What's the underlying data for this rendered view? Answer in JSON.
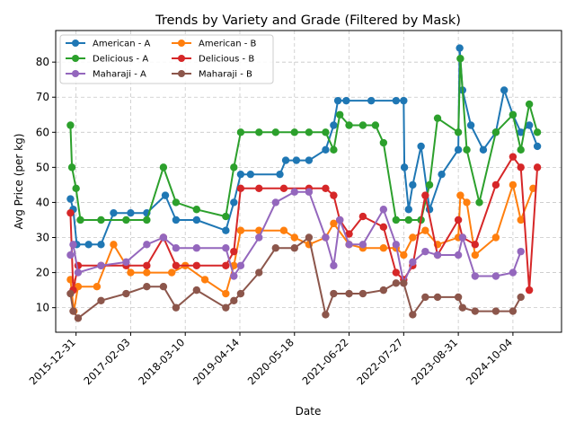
{
  "chart_data": {
    "type": "line",
    "title": "Trends by Variety and Grade (Filtered by Mask)",
    "xlabel": "Date",
    "ylabel": "Avg Price (per kg)",
    "xlim": [
      "2015-08-04",
      "2025-09-25"
    ],
    "ylim": [
      3,
      89
    ],
    "xticks": [
      "2015-12-31",
      "2017-02-03",
      "2018-03-10",
      "2019-04-14",
      "2020-05-18",
      "2021-06-22",
      "2022-07-27",
      "2023-08-31",
      "2024-10-04"
    ],
    "yticks": [
      10,
      20,
      30,
      40,
      50,
      60,
      70,
      80
    ],
    "grid": true,
    "legend_position": "top-left",
    "series": [
      {
        "name": "American - A",
        "color": "#1f77b4",
        "points": [
          [
            "2015-11-20",
            41
          ],
          [
            "2015-12-10",
            38
          ],
          [
            "2016-01-05",
            28
          ],
          [
            "2016-04-01",
            28
          ],
          [
            "2016-07-01",
            28
          ],
          [
            "2016-10-01",
            37
          ],
          [
            "2017-02-03",
            37
          ],
          [
            "2017-06-01",
            37
          ],
          [
            "2017-10-15",
            42
          ],
          [
            "2018-01-01",
            35
          ],
          [
            "2018-06-01",
            35
          ],
          [
            "2019-01-01",
            32
          ],
          [
            "2019-03-01",
            40
          ],
          [
            "2019-04-20",
            48
          ],
          [
            "2019-07-01",
            48
          ],
          [
            "2020-02-01",
            48
          ],
          [
            "2020-03-15",
            52
          ],
          [
            "2020-06-01",
            52
          ],
          [
            "2020-09-01",
            52
          ],
          [
            "2021-01-01",
            55
          ],
          [
            "2021-03-01",
            62
          ],
          [
            "2021-04-01",
            69
          ],
          [
            "2021-06-01",
            69
          ],
          [
            "2021-12-01",
            69
          ],
          [
            "2022-06-01",
            69
          ],
          [
            "2022-07-27",
            69
          ],
          [
            "2022-08-01",
            50
          ],
          [
            "2022-09-01",
            38
          ],
          [
            "2022-10-01",
            45
          ],
          [
            "2022-12-01",
            56
          ],
          [
            "2023-02-01",
            38
          ],
          [
            "2023-05-01",
            48
          ],
          [
            "2023-08-31",
            55
          ],
          [
            "2023-09-10",
            84
          ],
          [
            "2023-10-01",
            72
          ],
          [
            "2023-12-01",
            62
          ],
          [
            "2024-03-01",
            55
          ],
          [
            "2024-06-01",
            60
          ],
          [
            "2024-08-01",
            72
          ],
          [
            "2024-10-04",
            65
          ],
          [
            "2024-12-01",
            60
          ],
          [
            "2025-02-01",
            62
          ],
          [
            "2025-04-01",
            56
          ]
        ]
      },
      {
        "name": "American - B",
        "color": "#ff7f0e",
        "points": [
          [
            "2015-11-20",
            18
          ],
          [
            "2015-12-15",
            9
          ],
          [
            "2016-01-15",
            16
          ],
          [
            "2016-06-01",
            16
          ],
          [
            "2016-10-01",
            28
          ],
          [
            "2017-02-03",
            20
          ],
          [
            "2017-06-01",
            20
          ],
          [
            "2017-12-01",
            20
          ],
          [
            "2018-03-10",
            22
          ],
          [
            "2018-08-01",
            18
          ],
          [
            "2019-01-01",
            14
          ],
          [
            "2019-03-01",
            22
          ],
          [
            "2019-04-20",
            32
          ],
          [
            "2019-09-01",
            32
          ],
          [
            "2020-03-01",
            32
          ],
          [
            "2020-05-18",
            30
          ],
          [
            "2020-09-01",
            28
          ],
          [
            "2021-01-01",
            30
          ],
          [
            "2021-03-01",
            34
          ],
          [
            "2021-06-22",
            28
          ],
          [
            "2021-10-01",
            27
          ],
          [
            "2022-03-01",
            27
          ],
          [
            "2022-06-01",
            27
          ],
          [
            "2022-07-27",
            25
          ],
          [
            "2022-10-01",
            30
          ],
          [
            "2023-01-01",
            32
          ],
          [
            "2023-04-01",
            28
          ],
          [
            "2023-08-31",
            30
          ],
          [
            "2023-09-15",
            42
          ],
          [
            "2023-11-01",
            40
          ],
          [
            "2024-01-01",
            25
          ],
          [
            "2024-06-01",
            30
          ],
          [
            "2024-10-04",
            45
          ],
          [
            "2024-12-01",
            35
          ],
          [
            "2025-03-01",
            44
          ]
        ]
      },
      {
        "name": "Delicious - A",
        "color": "#2ca02c",
        "points": [
          [
            "2015-11-20",
            62
          ],
          [
            "2015-12-01",
            50
          ],
          [
            "2015-12-31",
            44
          ],
          [
            "2016-02-01",
            35
          ],
          [
            "2016-07-01",
            35
          ],
          [
            "2017-01-01",
            35
          ],
          [
            "2017-06-01",
            35
          ],
          [
            "2017-10-01",
            50
          ],
          [
            "2018-01-01",
            40
          ],
          [
            "2018-06-01",
            38
          ],
          [
            "2019-01-01",
            36
          ],
          [
            "2019-03-01",
            50
          ],
          [
            "2019-04-20",
            60
          ],
          [
            "2019-09-01",
            60
          ],
          [
            "2020-01-01",
            60
          ],
          [
            "2020-05-18",
            60
          ],
          [
            "2020-09-01",
            60
          ],
          [
            "2021-01-01",
            60
          ],
          [
            "2021-03-01",
            55
          ],
          [
            "2021-04-15",
            65
          ],
          [
            "2021-06-22",
            62
          ],
          [
            "2021-10-01",
            62
          ],
          [
            "2022-01-01",
            62
          ],
          [
            "2022-03-01",
            57
          ],
          [
            "2022-06-01",
            35
          ],
          [
            "2022-09-01",
            35
          ],
          [
            "2022-12-01",
            35
          ],
          [
            "2023-02-01",
            45
          ],
          [
            "2023-04-01",
            64
          ],
          [
            "2023-08-31",
            60
          ],
          [
            "2023-09-15",
            81
          ],
          [
            "2023-11-01",
            55
          ],
          [
            "2024-02-01",
            40
          ],
          [
            "2024-06-01",
            60
          ],
          [
            "2024-10-04",
            65
          ],
          [
            "2024-12-01",
            55
          ],
          [
            "2025-02-01",
            68
          ],
          [
            "2025-04-01",
            60
          ]
        ]
      },
      {
        "name": "Delicious - B",
        "color": "#d62728",
        "points": [
          [
            "2015-11-20",
            37
          ],
          [
            "2015-12-10",
            15
          ],
          [
            "2016-01-15",
            22
          ],
          [
            "2016-07-01",
            22
          ],
          [
            "2017-01-01",
            22
          ],
          [
            "2017-06-01",
            22
          ],
          [
            "2017-10-01",
            30
          ],
          [
            "2018-01-01",
            22
          ],
          [
            "2018-06-01",
            22
          ],
          [
            "2019-01-01",
            22
          ],
          [
            "2019-03-01",
            26
          ],
          [
            "2019-04-20",
            44
          ],
          [
            "2019-09-01",
            44
          ],
          [
            "2020-03-01",
            44
          ],
          [
            "2020-09-01",
            44
          ],
          [
            "2021-01-01",
            44
          ],
          [
            "2021-03-01",
            42
          ],
          [
            "2021-04-15",
            35
          ],
          [
            "2021-06-22",
            31
          ],
          [
            "2021-10-01",
            36
          ],
          [
            "2022-03-01",
            33
          ],
          [
            "2022-06-01",
            20
          ],
          [
            "2022-07-27",
            18
          ],
          [
            "2022-10-01",
            22
          ],
          [
            "2023-01-01",
            42
          ],
          [
            "2023-04-01",
            25
          ],
          [
            "2023-08-31",
            35
          ],
          [
            "2023-10-01",
            30
          ],
          [
            "2024-01-01",
            28
          ],
          [
            "2024-06-01",
            45
          ],
          [
            "2024-10-04",
            53
          ],
          [
            "2024-12-01",
            50
          ],
          [
            "2025-02-01",
            15
          ],
          [
            "2025-04-01",
            50
          ]
        ]
      },
      {
        "name": "Maharaji - A",
        "color": "#9467bd",
        "points": [
          [
            "2015-11-20",
            25
          ],
          [
            "2015-12-10",
            28
          ],
          [
            "2016-01-15",
            20
          ],
          [
            "2016-07-01",
            22
          ],
          [
            "2017-01-01",
            23
          ],
          [
            "2017-06-01",
            28
          ],
          [
            "2017-10-01",
            30
          ],
          [
            "2018-01-01",
            27
          ],
          [
            "2018-06-01",
            27
          ],
          [
            "2019-01-01",
            27
          ],
          [
            "2019-03-01",
            19
          ],
          [
            "2019-04-20",
            22
          ],
          [
            "2019-09-01",
            30
          ],
          [
            "2020-01-01",
            40
          ],
          [
            "2020-05-18",
            43
          ],
          [
            "2020-09-01",
            43
          ],
          [
            "2021-01-01",
            30
          ],
          [
            "2021-03-01",
            22
          ],
          [
            "2021-04-15",
            35
          ],
          [
            "2021-06-22",
            28
          ],
          [
            "2021-10-01",
            28
          ],
          [
            "2022-03-01",
            38
          ],
          [
            "2022-06-01",
            28
          ],
          [
            "2022-07-27",
            17
          ],
          [
            "2022-10-01",
            23
          ],
          [
            "2023-01-01",
            26
          ],
          [
            "2023-04-01",
            25
          ],
          [
            "2023-08-31",
            25
          ],
          [
            "2023-10-01",
            30
          ],
          [
            "2024-01-01",
            19
          ],
          [
            "2024-06-01",
            19
          ],
          [
            "2024-10-04",
            20
          ],
          [
            "2024-12-01",
            26
          ]
        ]
      },
      {
        "name": "Maharaji - B",
        "color": "#8c564b",
        "points": [
          [
            "2015-11-20",
            14
          ],
          [
            "2015-12-10",
            9
          ],
          [
            "2016-01-15",
            7
          ],
          [
            "2016-07-01",
            12
          ],
          [
            "2017-01-01",
            14
          ],
          [
            "2017-06-01",
            16
          ],
          [
            "2017-10-01",
            16
          ],
          [
            "2018-01-01",
            10
          ],
          [
            "2018-06-01",
            15
          ],
          [
            "2019-01-01",
            10
          ],
          [
            "2019-03-01",
            12
          ],
          [
            "2019-04-20",
            14
          ],
          [
            "2019-09-01",
            20
          ],
          [
            "2020-01-01",
            27
          ],
          [
            "2020-05-18",
            27
          ],
          [
            "2020-09-01",
            30
          ],
          [
            "2021-01-01",
            8
          ],
          [
            "2021-03-01",
            14
          ],
          [
            "2021-06-22",
            14
          ],
          [
            "2021-10-01",
            14
          ],
          [
            "2022-03-01",
            15
          ],
          [
            "2022-06-01",
            17
          ],
          [
            "2022-07-27",
            17
          ],
          [
            "2022-10-01",
            8
          ],
          [
            "2023-01-01",
            13
          ],
          [
            "2023-04-01",
            13
          ],
          [
            "2023-08-31",
            13
          ],
          [
            "2023-10-01",
            10
          ],
          [
            "2024-01-01",
            9
          ],
          [
            "2024-06-01",
            9
          ],
          [
            "2024-10-04",
            9
          ],
          [
            "2024-12-01",
            13
          ]
        ]
      }
    ]
  }
}
